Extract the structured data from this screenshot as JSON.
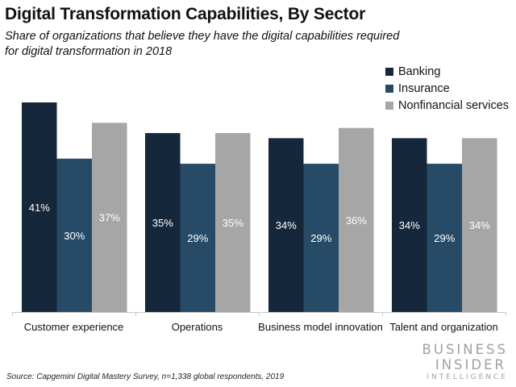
{
  "chart_data": {
    "type": "bar",
    "title": "Digital Transformation Capabilities, By Sector",
    "subtitle": "Share of organizations that believe they have the digital capabilities required for digital transformation in 2018",
    "categories": [
      "Customer experience",
      "Operations",
      "Business model innovation",
      "Talent and organization"
    ],
    "series": [
      {
        "name": "Banking",
        "color": "#15273a",
        "values": [
          41,
          35,
          34,
          34
        ],
        "labels": [
          "41%",
          "35%",
          "34%",
          "34%"
        ]
      },
      {
        "name": "Insurance",
        "color": "#274b66",
        "values": [
          30,
          29,
          29,
          29
        ],
        "labels": [
          "30%",
          "29%",
          "29%",
          "29%"
        ]
      },
      {
        "name": "Nonfinancial services",
        "color": "#a6a6a6",
        "values": [
          37,
          35,
          36,
          34
        ],
        "labels": [
          "37%",
          "35%",
          "36%",
          "34%"
        ]
      }
    ],
    "xlabel": "",
    "ylabel": "",
    "ylim": [
      0,
      41
    ],
    "grid": false,
    "legend_position": "top-right",
    "data_label_color": "#ffffff"
  },
  "footer": {
    "source": "Source: Capgemini Digital Mastery Survey, n=1,338 global respondents, 2019",
    "logo_line1": "BUSINESS",
    "logo_line2": "INSIDER",
    "logo_line3": "INTELLIGENCE"
  }
}
